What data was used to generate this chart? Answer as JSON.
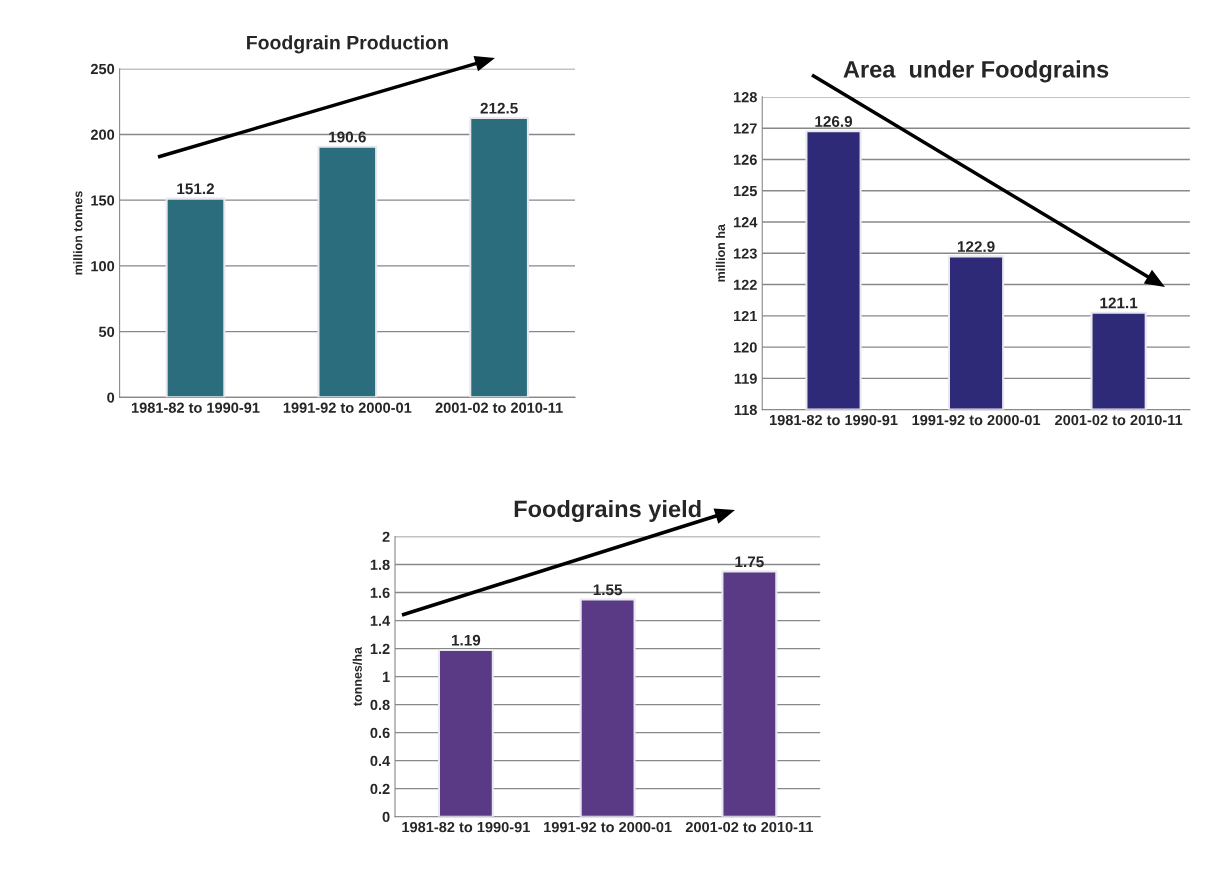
{
  "chart_data": [
    {
      "type": "bar",
      "title": "Foodgrain Production",
      "ylabel": "million tonnes",
      "categories": [
        "1981-82 to 1990-91",
        "1991-92 to 2000-01",
        "2001-02 to 2010-11"
      ],
      "values": [
        151.2,
        190.6,
        212.5
      ],
      "color": "#2b6c7d",
      "ylim": [
        0,
        250
      ],
      "yticks": [
        0,
        50,
        100,
        150,
        200,
        250
      ],
      "grid": "y",
      "data_labels": true,
      "legend": false
    },
    {
      "type": "bar",
      "title": "Area  under Foodgrains",
      "ylabel": "million ha",
      "categories": [
        "1981-82 to 1990-91",
        "1991-92 to 2000-01",
        "2001-02 to 2010-11"
      ],
      "values": [
        126.9,
        122.9,
        121.1
      ],
      "color": "#2e2a78",
      "ylim": [
        118,
        128
      ],
      "yticks": [
        118,
        119,
        120,
        121,
        122,
        123,
        124,
        125,
        126,
        127,
        128
      ],
      "grid": "y",
      "data_labels": true,
      "legend": false
    },
    {
      "type": "bar",
      "title": "Foodgrains yield",
      "ylabel": "tonnes/ha",
      "categories": [
        "1981-82 to 1990-91",
        "1991-92 to 2000-01",
        "2001-02 to 2010-11"
      ],
      "values": [
        1.19,
        1.55,
        1.75
      ],
      "color": "#5a3a84",
      "ylim": [
        0,
        2
      ],
      "yticks": [
        0,
        0.2,
        0.4,
        0.6,
        0.8,
        1,
        1.2,
        1.4,
        1.6,
        1.8,
        2
      ],
      "grid": "y",
      "data_labels": true,
      "legend": false
    }
  ]
}
